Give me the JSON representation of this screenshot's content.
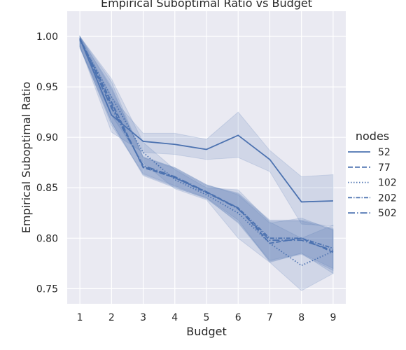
{
  "chart_data": {
    "type": "line",
    "title": "Empirical Suboptimal Ratio vs Budget",
    "xlabel": "Budget",
    "ylabel": "Empirical Suboptimal Ratio",
    "x": [
      1,
      2,
      3,
      4,
      5,
      6,
      7,
      8,
      9
    ],
    "xticks": [
      "1",
      "2",
      "3",
      "4",
      "5",
      "6",
      "7",
      "8",
      "9"
    ],
    "yticks": [
      "0.75",
      "0.80",
      "0.85",
      "0.90",
      "0.95",
      "1.00"
    ],
    "xlim": [
      0.6,
      9.4
    ],
    "ylim": [
      0.735,
      1.025
    ],
    "grid": true,
    "legend": {
      "title": "nodes",
      "placement": "right"
    },
    "color": "#4c72b0",
    "band_color": "#4c72b0",
    "background": "#eaeaf2",
    "series": [
      {
        "name": "52",
        "dash": "solid",
        "values": [
          0.998,
          0.922,
          0.896,
          0.893,
          0.888,
          0.902,
          0.878,
          0.836,
          0.837
        ],
        "lower": [
          0.99,
          0.905,
          0.885,
          0.883,
          0.878,
          0.88,
          0.866,
          0.814,
          0.812
        ],
        "upper": [
          1.0,
          0.94,
          0.904,
          0.904,
          0.898,
          0.925,
          0.887,
          0.861,
          0.863
        ]
      },
      {
        "name": "77",
        "dash": "dashed",
        "values": [
          0.998,
          0.935,
          0.87,
          0.86,
          0.846,
          0.83,
          0.795,
          0.8,
          0.786
        ],
        "lower": [
          0.99,
          0.915,
          0.862,
          0.85,
          0.84,
          0.818,
          0.776,
          0.785,
          0.765
        ],
        "upper": [
          1.0,
          0.955,
          0.88,
          0.87,
          0.853,
          0.843,
          0.815,
          0.82,
          0.808
        ]
      },
      {
        "name": "102",
        "dash": "dotted",
        "values": [
          0.996,
          0.94,
          0.885,
          0.858,
          0.843,
          0.825,
          0.795,
          0.773,
          0.787
        ],
        "lower": [
          0.988,
          0.922,
          0.875,
          0.849,
          0.838,
          0.8,
          0.776,
          0.748,
          0.765
        ],
        "upper": [
          1.0,
          0.958,
          0.895,
          0.868,
          0.85,
          0.848,
          0.816,
          0.8,
          0.813
        ]
      },
      {
        "name": "202",
        "dash": "dashdot-dense",
        "values": [
          0.997,
          0.932,
          0.871,
          0.86,
          0.845,
          0.83,
          0.8,
          0.8,
          0.79
        ],
        "lower": [
          0.989,
          0.915,
          0.863,
          0.851,
          0.839,
          0.816,
          0.778,
          0.785,
          0.77
        ],
        "upper": [
          1.0,
          0.95,
          0.88,
          0.869,
          0.852,
          0.845,
          0.818,
          0.818,
          0.81
        ]
      },
      {
        "name": "502",
        "dash": "dashdot",
        "values": [
          0.998,
          0.929,
          0.872,
          0.861,
          0.846,
          0.829,
          0.798,
          0.798,
          0.788
        ],
        "lower": [
          0.99,
          0.912,
          0.864,
          0.852,
          0.84,
          0.815,
          0.777,
          0.784,
          0.768
        ],
        "upper": [
          1.0,
          0.948,
          0.881,
          0.87,
          0.853,
          0.844,
          0.817,
          0.817,
          0.809
        ]
      }
    ]
  }
}
